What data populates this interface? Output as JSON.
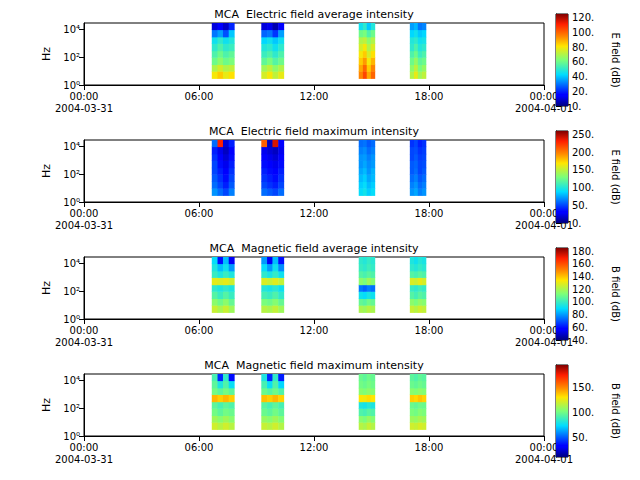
{
  "chart_data": [
    {
      "type": "heatmap",
      "title": "MCA  Electric field average intensity",
      "ylabel": "Hz",
      "log": "y",
      "xlim": [
        "2004-03-31 00:00",
        "2004-04-01 00:00"
      ],
      "xticks": [
        {
          "value": "2004-03-31 00:00",
          "label": "00:00\n2004-03-31"
        },
        {
          "value": "2004-03-31 06:00",
          "label": "06:00"
        },
        {
          "value": "2004-03-31 12:00",
          "label": "12:00"
        },
        {
          "value": "2004-03-31 18:00",
          "label": "18:00"
        },
        {
          "value": "2004-04-01 00:00",
          "label": "00:00\n2004-04-01"
        }
      ],
      "ylim": [
        1,
        30000
      ],
      "yticks": [
        {
          "value": 1,
          "label": "10⁰"
        },
        {
          "value": 100,
          "label": "10²"
        },
        {
          "value": 10000,
          "label": "10⁴"
        }
      ],
      "x_start": [
        "2004-03-31 06:40",
        "2004-03-31 06:58",
        "2004-03-31 07:15",
        "2004-03-31 07:33",
        "2004-03-31 09:15",
        "2004-03-31 09:33",
        "2004-03-31 09:50",
        "2004-03-31 10:08",
        "2004-03-31 14:20",
        "2004-03-31 14:33",
        "2004-03-31 14:45",
        "2004-03-31 14:58",
        "2004-03-31 17:00",
        "2004-03-31 17:13",
        "2004-03-31 17:25",
        "2004-03-31 17:38"
      ],
      "x_end": [
        "2004-03-31 06:58",
        "2004-03-31 07:15",
        "2004-03-31 07:33",
        "2004-03-31 07:50",
        "2004-03-31 09:33",
        "2004-03-31 09:50",
        "2004-03-31 10:08",
        "2004-03-31 10:25",
        "2004-03-31 14:33",
        "2004-03-31 14:45",
        "2004-03-31 14:58",
        "2004-03-31 15:10",
        "2004-03-31 17:13",
        "2004-03-31 17:25",
        "2004-03-31 17:38",
        "2004-03-31 17:50"
      ],
      "y_edges": [
        3,
        10,
        30,
        100,
        300,
        1000,
        3000,
        10000,
        30000
      ],
      "values": [
        [
          80,
          70,
          60,
          55,
          50,
          45,
          30,
          10
        ],
        [
          85,
          75,
          65,
          60,
          55,
          50,
          35,
          15
        ],
        [
          78,
          70,
          60,
          55,
          50,
          45,
          25,
          8
        ],
        [
          82,
          72,
          62,
          58,
          52,
          48,
          40,
          20
        ],
        [
          75,
          68,
          58,
          52,
          48,
          42,
          28,
          10
        ],
        [
          80,
          72,
          62,
          55,
          50,
          45,
          30,
          12
        ],
        [
          72,
          65,
          56,
          50,
          45,
          40,
          22,
          5
        ],
        [
          78,
          70,
          60,
          55,
          50,
          45,
          35,
          15
        ],
        [
          95,
          90,
          85,
          80,
          75,
          70,
          60,
          45
        ],
        [
          105,
          100,
          92,
          85,
          80,
          72,
          62,
          50
        ],
        [
          90,
          85,
          80,
          75,
          70,
          65,
          55,
          40
        ],
        [
          100,
          95,
          88,
          82,
          76,
          70,
          60,
          48
        ],
        [
          70,
          65,
          60,
          55,
          50,
          48,
          42,
          35
        ],
        [
          78,
          72,
          66,
          60,
          55,
          50,
          45,
          38
        ],
        [
          68,
          62,
          58,
          52,
          48,
          45,
          40,
          30
        ],
        [
          72,
          66,
          60,
          55,
          50,
          46,
          42,
          32
        ]
      ],
      "colorbar": {
        "label": "E field (dB)",
        "range": [
          0,
          125
        ],
        "ticks": [
          {
            "value": 0,
            "label": "0."
          },
          {
            "value": 20,
            "label": "20."
          },
          {
            "value": 40,
            "label": "40."
          },
          {
            "value": 60,
            "label": "60."
          },
          {
            "value": 80,
            "label": "80."
          },
          {
            "value": 100,
            "label": "100."
          },
          {
            "value": 120,
            "label": "120."
          }
        ]
      }
    },
    {
      "type": "heatmap",
      "title": "MCA  Electric field maximum intensity",
      "ylabel": "Hz",
      "log": "y",
      "xlim": [
        "2004-03-31 00:00",
        "2004-04-01 00:00"
      ],
      "xticks": [
        {
          "value": "2004-03-31 00:00",
          "label": "00:00\n2004-03-31"
        },
        {
          "value": "2004-03-31 06:00",
          "label": "06:00"
        },
        {
          "value": "2004-03-31 12:00",
          "label": "12:00"
        },
        {
          "value": "2004-03-31 18:00",
          "label": "18:00"
        },
        {
          "value": "2004-04-01 00:00",
          "label": "00:00\n2004-04-01"
        }
      ],
      "ylim": [
        1,
        30000
      ],
      "yticks": [
        {
          "value": 1,
          "label": "10⁰"
        },
        {
          "value": 100,
          "label": "10²"
        },
        {
          "value": 10000,
          "label": "10⁴"
        }
      ],
      "x_start": [
        "2004-03-31 06:40",
        "2004-03-31 06:58",
        "2004-03-31 07:15",
        "2004-03-31 07:33",
        "2004-03-31 09:15",
        "2004-03-31 09:33",
        "2004-03-31 09:50",
        "2004-03-31 10:08",
        "2004-03-31 14:20",
        "2004-03-31 14:33",
        "2004-03-31 14:45",
        "2004-03-31 14:58",
        "2004-03-31 17:00",
        "2004-03-31 17:13",
        "2004-03-31 17:25",
        "2004-03-31 17:38"
      ],
      "x_end": [
        "2004-03-31 06:58",
        "2004-03-31 07:15",
        "2004-03-31 07:33",
        "2004-03-31 07:50",
        "2004-03-31 09:33",
        "2004-03-31 09:50",
        "2004-03-31 10:08",
        "2004-03-31 10:25",
        "2004-03-31 14:33",
        "2004-03-31 14:45",
        "2004-03-31 14:58",
        "2004-03-31 15:10",
        "2004-03-31 17:13",
        "2004-03-31 17:25",
        "2004-03-31 17:38",
        "2004-03-31 17:50"
      ],
      "y_edges": [
        3,
        10,
        30,
        100,
        300,
        1000,
        3000,
        10000,
        30000
      ],
      "values": [
        [
          70,
          60,
          55,
          50,
          50,
          45,
          40,
          60
        ],
        [
          60,
          50,
          45,
          40,
          35,
          30,
          25,
          230
        ],
        [
          50,
          40,
          35,
          30,
          25,
          20,
          15,
          20
        ],
        [
          65,
          55,
          50,
          45,
          40,
          35,
          30,
          40
        ],
        [
          60,
          50,
          45,
          40,
          35,
          30,
          25,
          210
        ],
        [
          55,
          45,
          40,
          35,
          30,
          25,
          20,
          15
        ],
        [
          50,
          40,
          35,
          30,
          25,
          20,
          15,
          240
        ],
        [
          60,
          50,
          45,
          40,
          35,
          30,
          25,
          30
        ],
        [
          90,
          85,
          80,
          75,
          70,
          70,
          65,
          60
        ],
        [
          95,
          90,
          85,
          80,
          75,
          72,
          68,
          62
        ],
        [
          85,
          80,
          75,
          70,
          68,
          65,
          60,
          55
        ],
        [
          90,
          85,
          80,
          78,
          72,
          70,
          65,
          60
        ],
        [
          70,
          65,
          60,
          55,
          55,
          50,
          50,
          45
        ],
        [
          75,
          70,
          65,
          60,
          58,
          55,
          52,
          50
        ],
        [
          65,
          60,
          55,
          50,
          50,
          48,
          45,
          40
        ],
        [
          70,
          65,
          60,
          55,
          52,
          50,
          48,
          45
        ]
      ],
      "colorbar": {
        "label": "E field (dB)",
        "range": [
          0,
          260
        ],
        "ticks": [
          {
            "value": 0,
            "label": "0."
          },
          {
            "value": 50,
            "label": "50."
          },
          {
            "value": 100,
            "label": "100."
          },
          {
            "value": 150,
            "label": "150."
          },
          {
            "value": 200,
            "label": "200."
          },
          {
            "value": 250,
            "label": "250."
          }
        ]
      }
    },
    {
      "type": "heatmap",
      "title": "MCA  Magnetic field average intensity",
      "ylabel": "Hz",
      "log": "y",
      "xlim": [
        "2004-03-31 00:00",
        "2004-04-01 00:00"
      ],
      "xticks": [
        {
          "value": "2004-03-31 00:00",
          "label": "00:00\n2004-03-31"
        },
        {
          "value": "2004-03-31 06:00",
          "label": "06:00"
        },
        {
          "value": "2004-03-31 12:00",
          "label": "12:00"
        },
        {
          "value": "2004-03-31 18:00",
          "label": "18:00"
        },
        {
          "value": "2004-04-01 00:00",
          "label": "00:00\n2004-04-01"
        }
      ],
      "ylim": [
        1,
        30000
      ],
      "yticks": [
        {
          "value": 1,
          "label": "10⁰"
        },
        {
          "value": 100,
          "label": "10²"
        },
        {
          "value": 10000,
          "label": "10⁴"
        }
      ],
      "x_start": [
        "2004-03-31 06:40",
        "2004-03-31 06:58",
        "2004-03-31 07:15",
        "2004-03-31 07:33",
        "2004-03-31 09:15",
        "2004-03-31 09:33",
        "2004-03-31 09:50",
        "2004-03-31 10:08",
        "2004-03-31 14:20",
        "2004-03-31 14:33",
        "2004-03-31 14:45",
        "2004-03-31 14:58",
        "2004-03-31 17:00",
        "2004-03-31 17:13",
        "2004-03-31 17:25",
        "2004-03-31 17:38"
      ],
      "x_end": [
        "2004-03-31 06:58",
        "2004-03-31 07:15",
        "2004-03-31 07:33",
        "2004-03-31 07:50",
        "2004-03-31 09:33",
        "2004-03-31 09:50",
        "2004-03-31 10:08",
        "2004-03-31 10:25",
        "2004-03-31 14:33",
        "2004-03-31 14:45",
        "2004-03-31 14:58",
        "2004-03-31 15:10",
        "2004-03-31 17:13",
        "2004-03-31 17:25",
        "2004-03-31 17:38",
        "2004-03-31 17:50"
      ],
      "y_edges": [
        3,
        10,
        30,
        100,
        300,
        1000,
        3000,
        10000,
        30000
      ],
      "values": [
        [
          125,
          115,
          105,
          98,
          130,
          100,
          95,
          90
        ],
        [
          120,
          110,
          100,
          95,
          128,
          95,
          85,
          60
        ],
        [
          125,
          115,
          105,
          98,
          130,
          100,
          92,
          85
        ],
        [
          118,
          108,
          100,
          95,
          126,
          95,
          80,
          55
        ],
        [
          122,
          112,
          102,
          96,
          128,
          98,
          90,
          80
        ],
        [
          120,
          110,
          100,
          94,
          125,
          94,
          80,
          55
        ],
        [
          124,
          114,
          104,
          97,
          129,
          99,
          92,
          85
        ],
        [
          118,
          108,
          98,
          92,
          124,
          92,
          78,
          60
        ],
        [
          120,
          108,
          92,
          75,
          115,
          105,
          100,
          98
        ],
        [
          118,
          106,
          90,
          72,
          112,
          103,
          98,
          96
        ],
        [
          122,
          110,
          94,
          76,
          118,
          106,
          101,
          99
        ],
        [
          120,
          108,
          92,
          74,
          114,
          104,
          99,
          97
        ],
        [
          125,
          115,
          105,
          100,
          128,
          105,
          98,
          95
        ],
        [
          122,
          112,
          102,
          98,
          126,
          103,
          96,
          92
        ],
        [
          126,
          116,
          106,
          101,
          130,
          106,
          99,
          96
        ],
        [
          124,
          114,
          104,
          99,
          127,
          104,
          97,
          94
        ]
      ],
      "colorbar": {
        "label": "B field (dB)",
        "range": [
          40,
          185
        ],
        "ticks": [
          {
            "value": 40,
            "label": "40."
          },
          {
            "value": 60,
            "label": "60."
          },
          {
            "value": 80,
            "label": "80."
          },
          {
            "value": 100,
            "label": "100."
          },
          {
            "value": 120,
            "label": "120."
          },
          {
            "value": 140,
            "label": "140."
          },
          {
            "value": 160,
            "label": "160."
          },
          {
            "value": 180,
            "label": "180."
          }
        ]
      }
    },
    {
      "type": "heatmap",
      "title": "MCA  Magnetic field maximum intensity",
      "ylabel": "Hz",
      "log": "y",
      "xlim": [
        "2004-03-31 00:00",
        "2004-04-01 00:00"
      ],
      "xticks": [
        {
          "value": "2004-03-31 00:00",
          "label": "00:00\n2004-03-31"
        },
        {
          "value": "2004-03-31 06:00",
          "label": "06:00"
        },
        {
          "value": "2004-03-31 12:00",
          "label": "12:00"
        },
        {
          "value": "2004-03-31 18:00",
          "label": "18:00"
        },
        {
          "value": "2004-04-01 00:00",
          "label": "00:00\n2004-04-01"
        }
      ],
      "ylim": [
        1,
        30000
      ],
      "yticks": [
        {
          "value": 1,
          "label": "10⁰"
        },
        {
          "value": 100,
          "label": "10²"
        },
        {
          "value": 10000,
          "label": "10⁴"
        }
      ],
      "x_start": [
        "2004-03-31 06:40",
        "2004-03-31 06:58",
        "2004-03-31 07:15",
        "2004-03-31 07:33",
        "2004-03-31 09:15",
        "2004-03-31 09:33",
        "2004-03-31 09:50",
        "2004-03-31 10:08",
        "2004-03-31 14:20",
        "2004-03-31 14:33",
        "2004-03-31 14:45",
        "2004-03-31 14:58",
        "2004-03-31 17:00",
        "2004-03-31 17:13",
        "2004-03-31 17:25",
        "2004-03-31 17:38"
      ],
      "x_end": [
        "2004-03-31 06:58",
        "2004-03-31 07:15",
        "2004-03-31 07:33",
        "2004-03-31 07:50",
        "2004-03-31 09:33",
        "2004-03-31 09:50",
        "2004-03-31 10:08",
        "2004-03-31 10:25",
        "2004-03-31 14:33",
        "2004-03-31 14:45",
        "2004-03-31 14:58",
        "2004-03-31 15:10",
        "2004-03-31 17:13",
        "2004-03-31 17:25",
        "2004-03-31 17:38",
        "2004-03-31 17:50"
      ],
      "y_edges": [
        3,
        10,
        30,
        100,
        300,
        1000,
        3000,
        10000,
        30000
      ],
      "values": [
        [
          120,
          110,
          100,
          95,
          140,
          100,
          95,
          90
        ],
        [
          115,
          105,
          95,
          90,
          135,
          95,
          80,
          40
        ],
        [
          120,
          110,
          100,
          95,
          140,
          100,
          92,
          85
        ],
        [
          115,
          105,
          98,
          92,
          135,
          95,
          75,
          35
        ],
        [
          118,
          108,
          98,
          94,
          138,
          98,
          90,
          80
        ],
        [
          115,
          105,
          95,
          90,
          135,
          94,
          75,
          40
        ],
        [
          120,
          110,
          100,
          95,
          140,
          99,
          92,
          85
        ],
        [
          114,
          104,
          95,
          90,
          134,
          92,
          72,
          38
        ],
        [
          115,
          105,
          92,
          80,
          130,
          105,
          100,
          98
        ],
        [
          112,
          102,
          90,
          78,
          128,
          103,
          98,
          95
        ],
        [
          118,
          108,
          94,
          82,
          132,
          106,
          101,
          99
        ],
        [
          114,
          104,
          92,
          80,
          130,
          104,
          99,
          97
        ],
        [
          120,
          110,
          102,
          98,
          135,
          105,
          98,
          95
        ],
        [
          118,
          108,
          100,
          96,
          133,
          103,
          96,
          92
        ],
        [
          122,
          112,
          104,
          99,
          137,
          106,
          99,
          96
        ],
        [
          120,
          110,
          102,
          98,
          134,
          104,
          97,
          94
        ]
      ],
      "colorbar": {
        "label": "B field (dB)",
        "range": [
          10,
          195
        ],
        "ticks": [
          {
            "value": 50,
            "label": "50."
          },
          {
            "value": 100,
            "label": "100."
          },
          {
            "value": 150,
            "label": "150."
          }
        ]
      }
    }
  ]
}
